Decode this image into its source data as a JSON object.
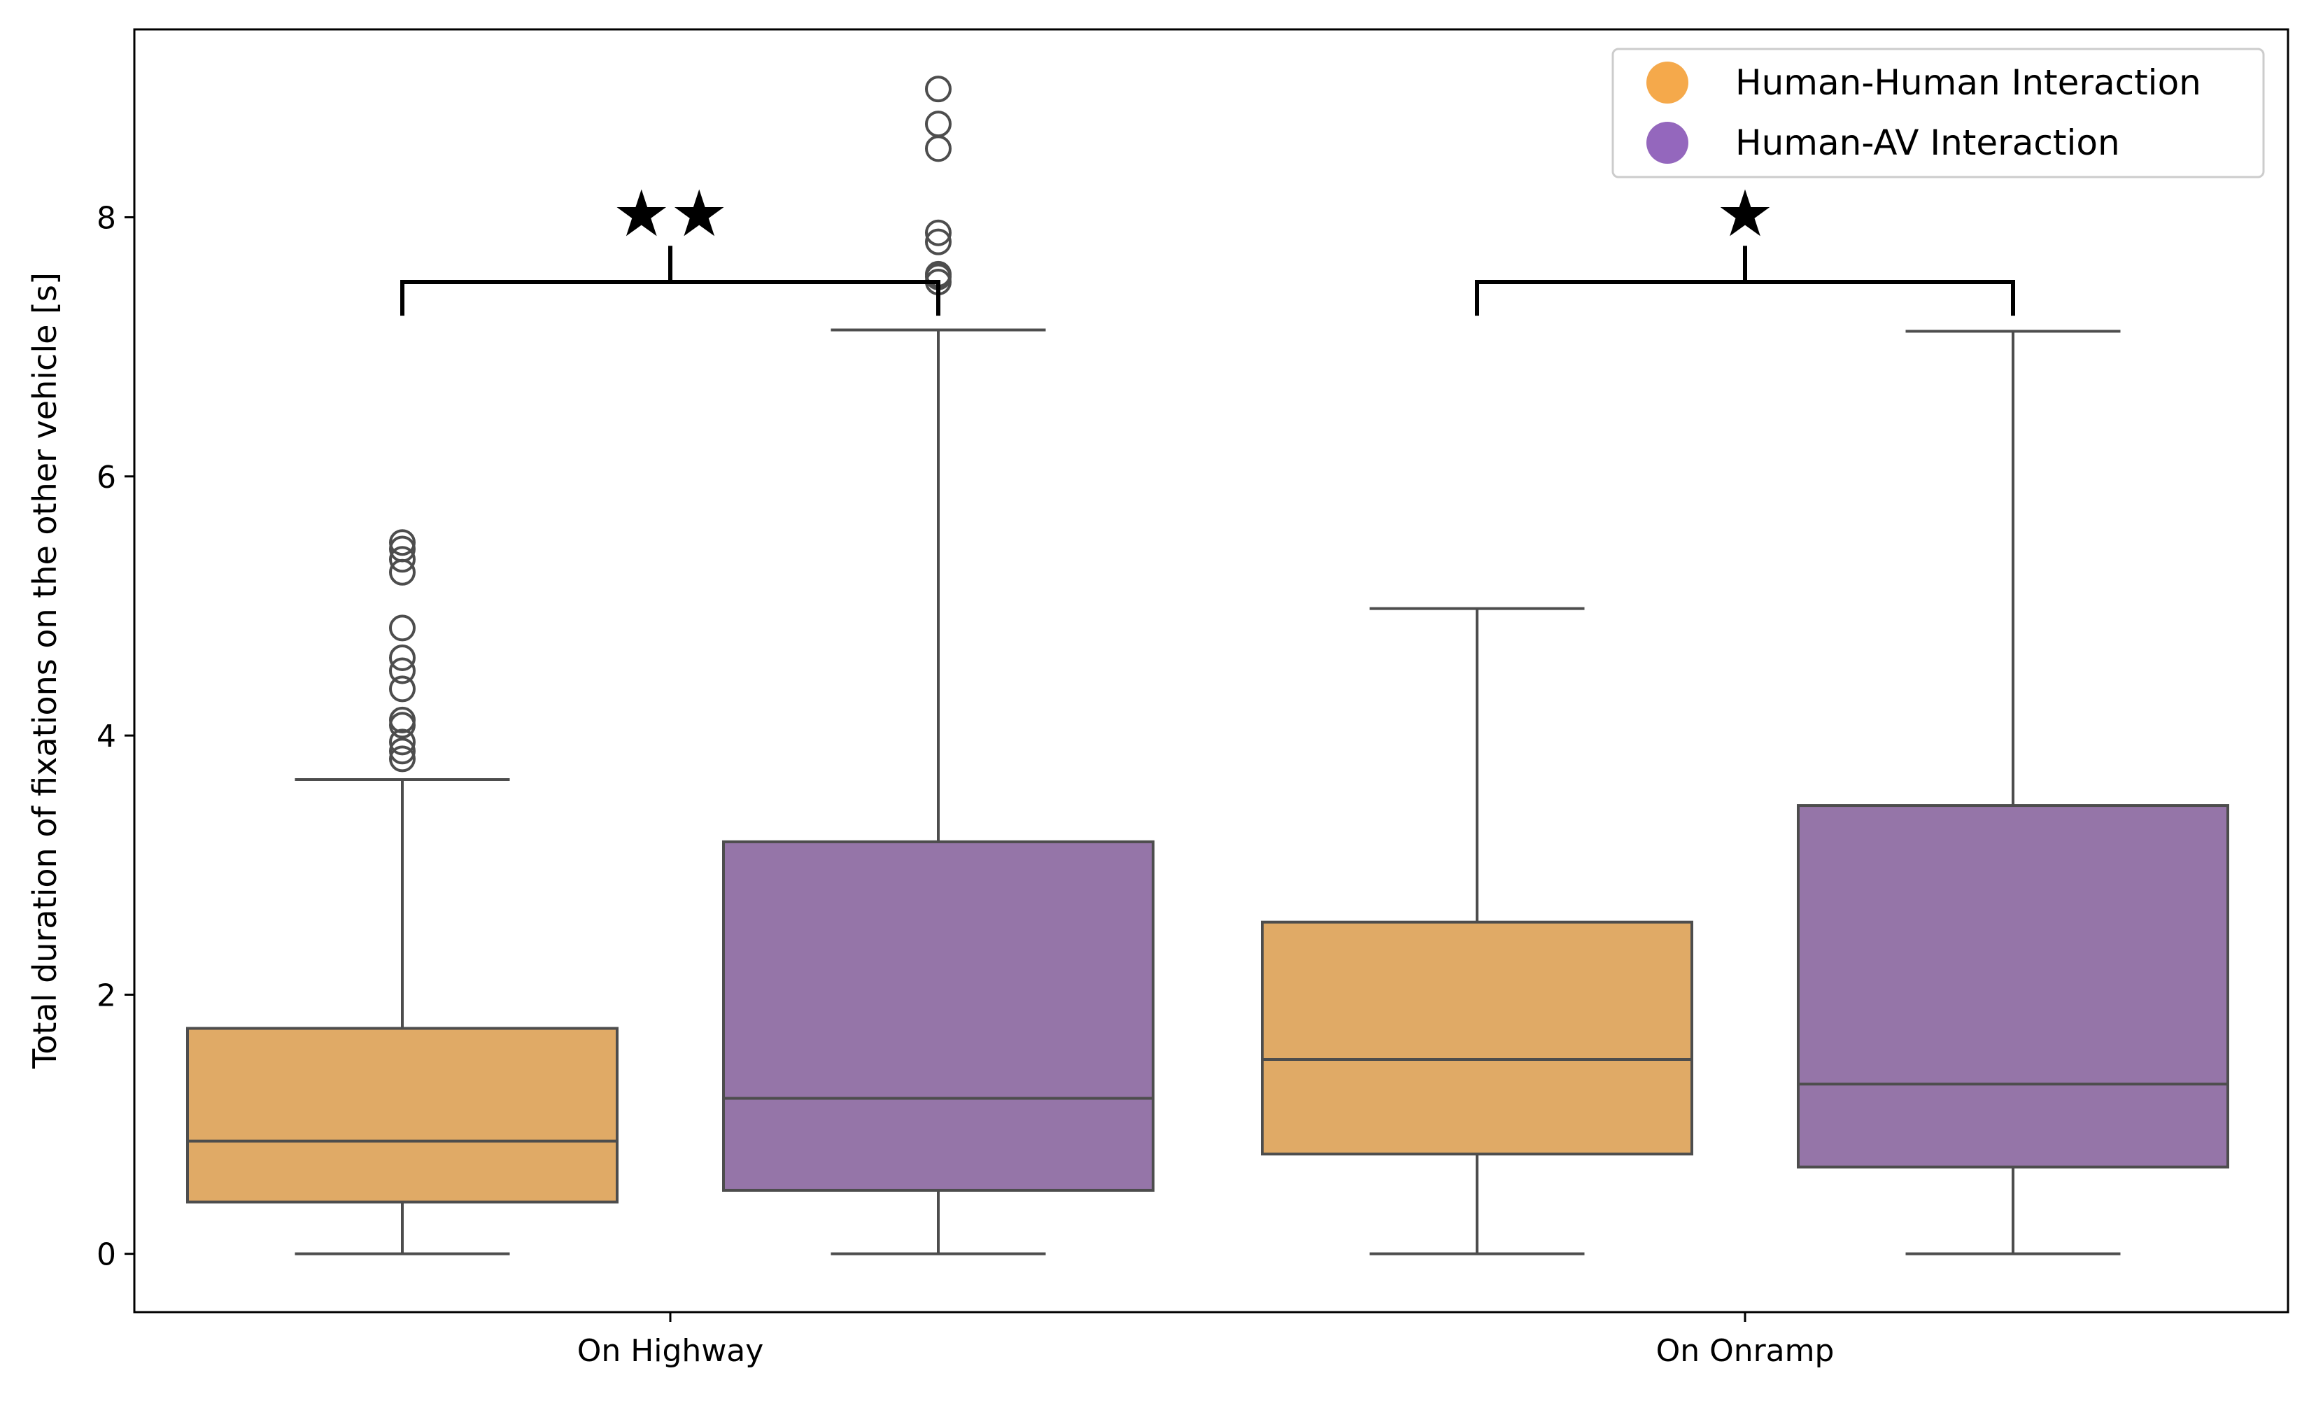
{
  "chart_data": {
    "type": "box",
    "title": "",
    "xlabel": "",
    "ylabel": "Total duration of fixations on the other vehicle [s]",
    "ylim": [
      -0.45,
      9.45
    ],
    "yticks": [
      0,
      2,
      4,
      6,
      8
    ],
    "ytick_labels": [
      "0",
      "2",
      "4",
      "6",
      "8"
    ],
    "grid": false,
    "legend_position": "top-right",
    "categories": [
      "On Highway",
      "On Onramp"
    ],
    "series": [
      {
        "name": "Human-Human Interaction",
        "color": "#F5A94B",
        "box_color": "#E0AA66",
        "boxes": [
          {
            "category": "On Highway",
            "whisker_low": 0.0,
            "q1": 0.4,
            "median": 0.87,
            "q3": 1.74,
            "whisker_high": 3.66,
            "outliers": [
              3.82,
              3.88,
              3.95,
              4.08,
              4.12,
              4.36,
              4.5,
              4.6,
              4.83,
              5.26,
              5.36,
              5.44,
              5.49
            ]
          },
          {
            "category": "On Onramp",
            "whisker_low": 0.0,
            "q1": 0.77,
            "median": 1.5,
            "q3": 2.56,
            "whisker_high": 4.98,
            "outliers": []
          }
        ]
      },
      {
        "name": "Human-AV Interaction",
        "color": "#9467BD",
        "box_color": "#9575A8",
        "boxes": [
          {
            "category": "On Highway",
            "whisker_low": 0.0,
            "q1": 0.49,
            "median": 1.2,
            "q3": 3.18,
            "whisker_high": 7.13,
            "outliers": [
              7.5,
              7.54,
              7.56,
              7.81,
              7.88,
              8.53,
              8.72,
              8.99
            ]
          },
          {
            "category": "On Onramp",
            "whisker_low": 0.0,
            "q1": 0.67,
            "median": 1.31,
            "q3": 3.46,
            "whisker_high": 7.12,
            "outliers": []
          }
        ]
      }
    ],
    "annotations": [
      {
        "category": "On Highway",
        "label": "★★",
        "bracket_y": 7.5,
        "bracket_ticks_low": 7.24,
        "bracket_top": 7.78
      },
      {
        "category": "On Onramp",
        "label": "★",
        "bracket_y": 7.5,
        "bracket_ticks_low": 7.24,
        "bracket_top": 7.78
      }
    ]
  }
}
